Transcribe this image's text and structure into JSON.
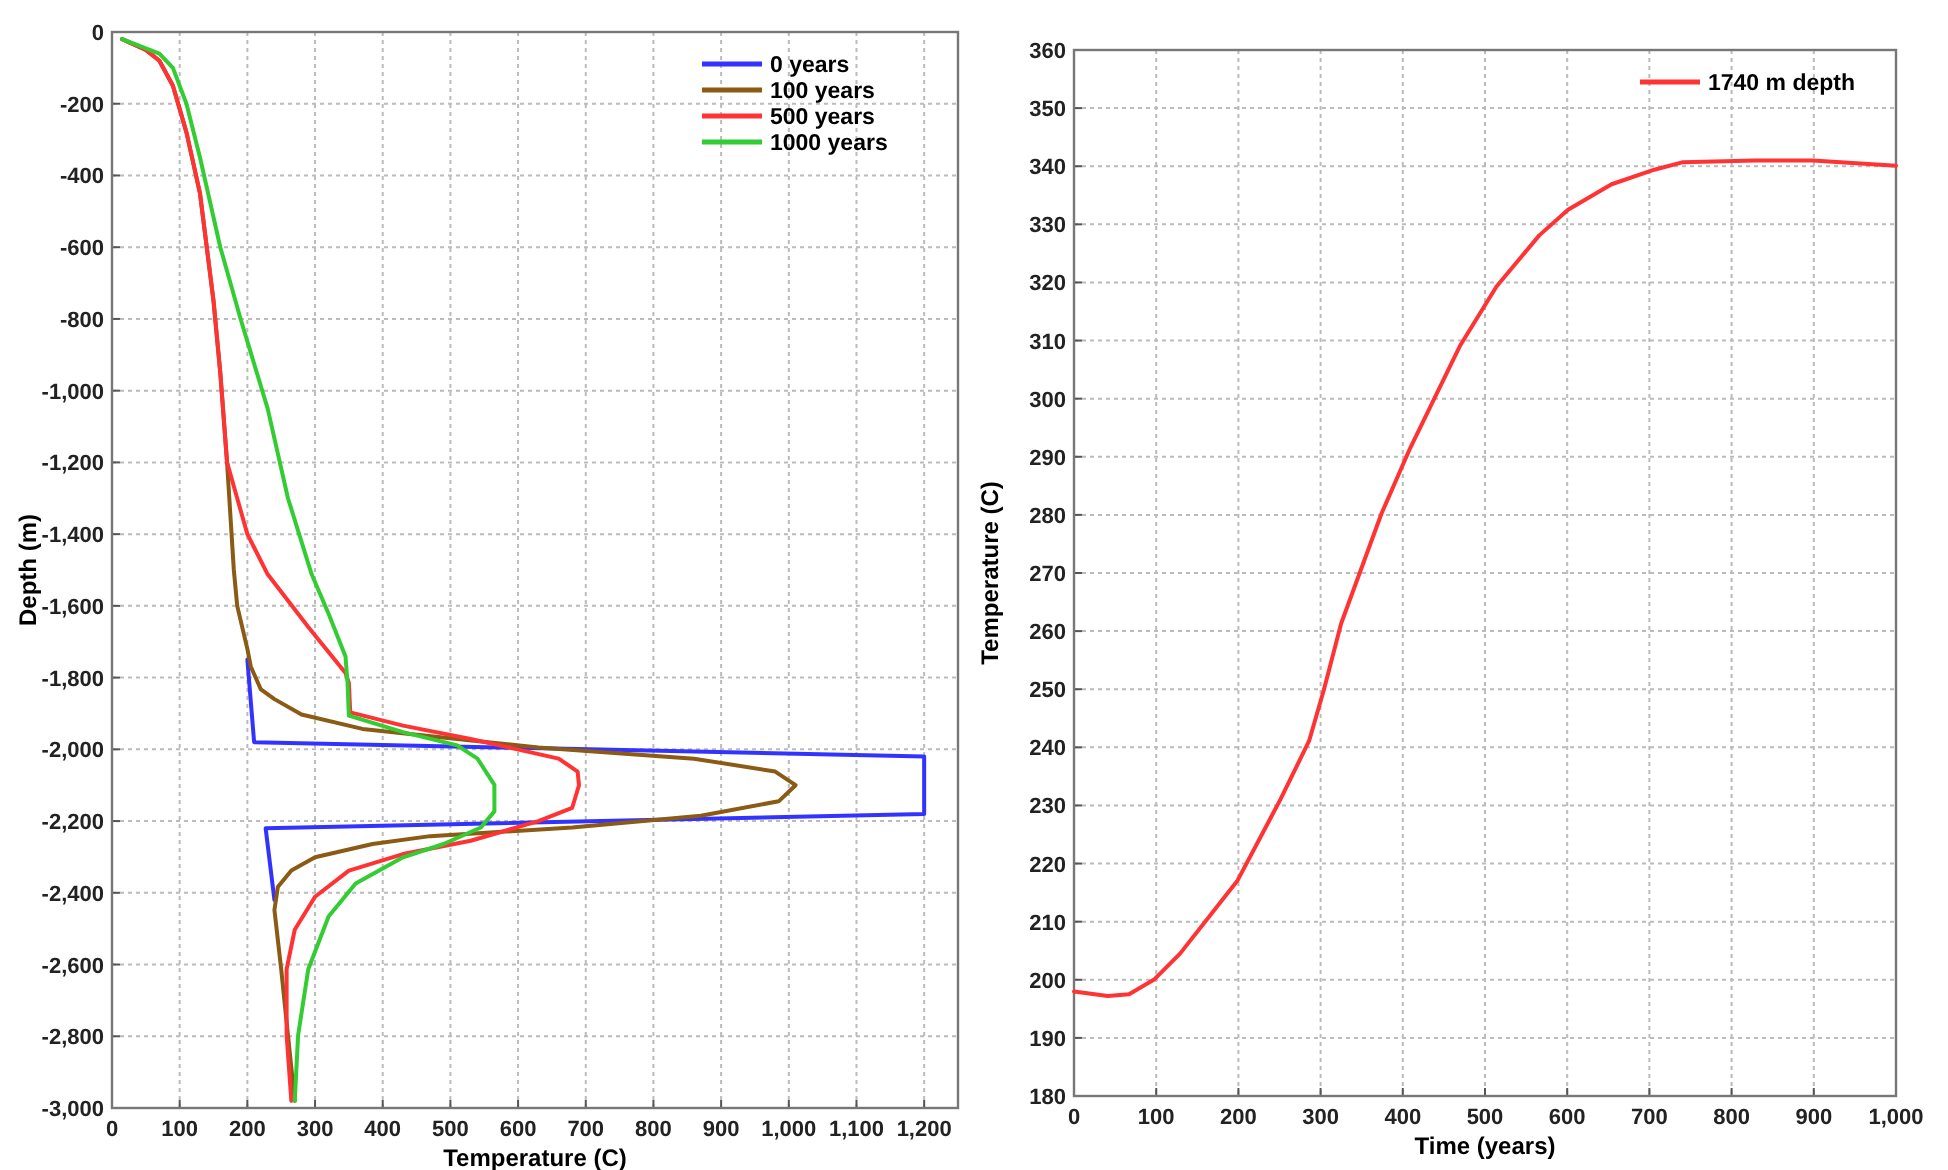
{
  "chart_data": [
    {
      "type": "line",
      "xlabel": "Temperature (C)",
      "ylabel": "Depth (m)",
      "xlim": [
        0,
        1250
      ],
      "ylim": [
        -3000,
        0
      ],
      "xticks": [
        0,
        100,
        200,
        300,
        400,
        500,
        600,
        700,
        800,
        900,
        {
          "value": 1000,
          "label": "1,000"
        },
        {
          "value": 1100,
          "label": "1,100"
        },
        {
          "value": 1200,
          "label": "1,200"
        }
      ],
      "yticks": [
        0,
        -200,
        -400,
        -600,
        -800,
        {
          "value": -1000,
          "label": "-1,000"
        },
        {
          "value": -1200,
          "label": "-1,200"
        },
        {
          "value": -1400,
          "label": "-1,400"
        },
        {
          "value": -1600,
          "label": "-1,600"
        },
        {
          "value": -1800,
          "label": "-1,800"
        },
        {
          "value": -2000,
          "label": "-2,000"
        },
        {
          "value": -2200,
          "label": "-2,200"
        },
        {
          "value": -2400,
          "label": "-2,400"
        },
        {
          "value": -2600,
          "label": "-2,600"
        },
        {
          "value": -2800,
          "label": "-2,800"
        },
        {
          "value": -3000,
          "label": "-3,000"
        }
      ],
      "grid": true,
      "legend": "top right",
      "line_style": "solid",
      "marker": "none",
      "series": [
        {
          "name": "0 years",
          "color": "#3333ff",
          "x": [
            200,
            210,
            1200,
            1200,
            227,
            240
          ],
          "values": [
            -1750,
            -1980,
            -2020,
            -2180,
            -2220,
            -2420
          ]
        },
        {
          "name": "100 years",
          "color": "#8b5a14",
          "x": [
            15,
            50,
            70,
            90,
            110,
            130,
            150,
            160,
            170,
            180,
            185,
            200,
            205,
            220,
            240,
            280,
            370,
            510,
            630,
            860,
            980,
            1010,
            985,
            870,
            680,
            470,
            385,
            300,
            265,
            245,
            240,
            250,
            260,
            270
          ],
          "values": [
            -20,
            -50,
            -80,
            -150,
            -280,
            -450,
            -750,
            -950,
            -1200,
            -1500,
            -1600,
            -1720,
            -1769,
            -1833,
            -1860,
            -1903,
            -1943,
            -1971,
            -1995,
            -2026,
            -2062,
            -2100,
            -2145,
            -2185,
            -2218,
            -2242,
            -2264,
            -2301,
            -2338,
            -2384,
            -2448,
            -2613,
            -2797,
            -2980
          ]
        },
        {
          "name": "500 years",
          "color": "#ff3333",
          "x": [
            15,
            50,
            70,
            90,
            110,
            130,
            150,
            160,
            170,
            185,
            200,
            230,
            290,
            345,
            350,
            352,
            430,
            530,
            660,
            688,
            690,
            680,
            630,
            530,
            430,
            350,
            300,
            270,
            258,
            258,
            265
          ],
          "values": [
            -20,
            -50,
            -80,
            -150,
            -280,
            -450,
            -750,
            -950,
            -1200,
            -1300,
            -1400,
            -1512,
            -1659,
            -1787,
            -1815,
            -1897,
            -1934,
            -1971,
            -2026,
            -2062,
            -2100,
            -2163,
            -2200,
            -2255,
            -2292,
            -2338,
            -2411,
            -2503,
            -2613,
            -2797,
            -2980
          ]
        },
        {
          "name": "1000 years",
          "color": "#33cc33",
          "x": [
            15,
            70,
            90,
            110,
            130,
            160,
            190,
            230,
            260,
            295,
            320,
            345,
            348,
            350,
            430,
            510,
            540,
            565,
            565,
            545,
            490,
            430,
            360,
            320,
            290,
            275,
            270
          ],
          "values": [
            -20,
            -60,
            -100,
            -200,
            -350,
            -600,
            -800,
            -1050,
            -1300,
            -1512,
            -1622,
            -1741,
            -1815,
            -1906,
            -1952,
            -1989,
            -2026,
            -2099,
            -2173,
            -2218,
            -2264,
            -2301,
            -2374,
            -2466,
            -2613,
            -2797,
            -2980
          ]
        }
      ]
    },
    {
      "type": "line",
      "xlabel": "Time (years)",
      "ylabel": "Temperature (C)",
      "xlim": [
        0,
        1000
      ],
      "ylim": [
        180,
        360
      ],
      "xticks": [
        0,
        100,
        200,
        300,
        400,
        500,
        600,
        700,
        800,
        900,
        {
          "value": 1000,
          "label": "1,000"
        }
      ],
      "yticks": [
        180,
        190,
        200,
        210,
        220,
        230,
        240,
        250,
        260,
        270,
        280,
        290,
        300,
        310,
        320,
        330,
        340,
        350,
        360
      ],
      "grid": true,
      "legend": "top right",
      "line_style": "solid",
      "marker": "none",
      "series": [
        {
          "name": "1740 m depth",
          "color": "#ff3333",
          "x": [
            0,
            41,
            67,
            98,
            129,
            199,
            251,
            286,
            304,
            325,
            374,
            409,
            470,
            514,
            566,
            601,
            654,
            706,
            741,
            829,
            899,
            1000
          ],
          "values": [
            198,
            197.2,
            197.5,
            200.1,
            204.5,
            217.1,
            231,
            241.1,
            249.9,
            261.3,
            280.2,
            291.5,
            309.2,
            319.3,
            328.1,
            332.5,
            336.9,
            339.4,
            340.7,
            341,
            341,
            340.1
          ]
        }
      ]
    }
  ]
}
